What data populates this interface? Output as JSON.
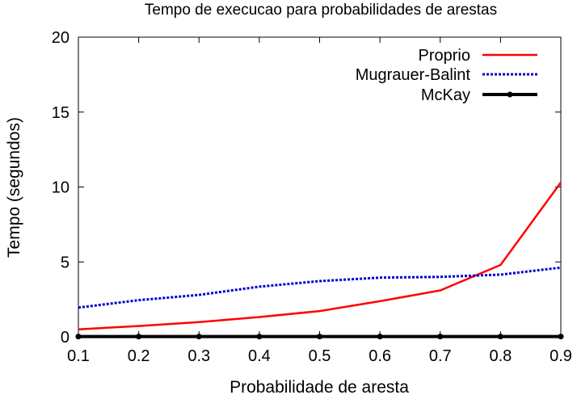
{
  "chart_data": {
    "type": "line",
    "title": "Tempo de execucao para probabilidades de arestas",
    "xlabel": "Probabilidade de aresta",
    "ylabel": "Tempo (segundos)",
    "xlim": [
      0.1,
      0.9
    ],
    "ylim": [
      0,
      20
    ],
    "xticks": [
      "0.1",
      "0.2",
      "0.3",
      "0.4",
      "0.5",
      "0.6",
      "0.7",
      "0.8",
      "0.9"
    ],
    "yticks": [
      "0",
      "5",
      "10",
      "15",
      "20"
    ],
    "x": [
      0.1,
      0.2,
      0.3,
      0.4,
      0.5,
      0.6,
      0.7,
      0.8,
      0.9
    ],
    "grid": false,
    "legend_position": "top-right",
    "series": [
      {
        "name": "Proprio",
        "color": "#ff0000",
        "style": "solid",
        "values": [
          0.5,
          0.72,
          0.98,
          1.32,
          1.72,
          2.38,
          3.1,
          4.8,
          10.3
        ]
      },
      {
        "name": "Mugrauer-Balint",
        "color": "#0000cc",
        "style": "dotted",
        "values": [
          1.95,
          2.45,
          2.8,
          3.35,
          3.72,
          3.95,
          4.0,
          4.15,
          4.62
        ]
      },
      {
        "name": "McKay",
        "color": "#000000",
        "style": "solid-points",
        "values": [
          0.02,
          0.02,
          0.02,
          0.02,
          0.02,
          0.02,
          0.02,
          0.02,
          0.02
        ]
      }
    ]
  }
}
